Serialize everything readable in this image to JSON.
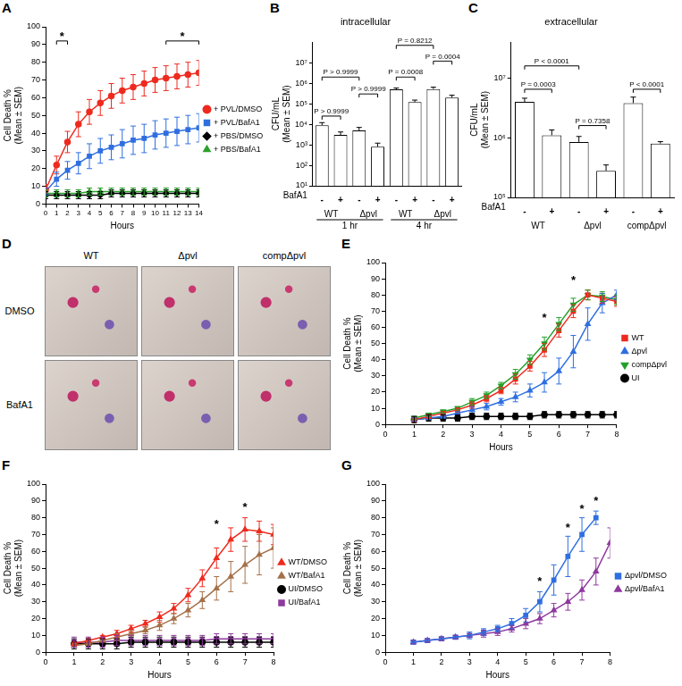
{
  "chart_data": [
    {
      "panel": "A",
      "type": "line",
      "xlabel": "Hours",
      "ylabel": [
        "Cell Death %",
        "(Mean ± SEM)"
      ],
      "x": [
        0,
        1,
        2,
        3,
        4,
        5,
        6,
        7,
        8,
        9,
        10,
        11,
        12,
        13,
        14
      ],
      "xlim": [
        0,
        14
      ],
      "xticks": [
        0,
        1,
        2,
        3,
        4,
        5,
        6,
        7,
        8,
        9,
        10,
        11,
        12,
        13,
        14
      ],
      "ylim": [
        0,
        100
      ],
      "yticks": [
        0,
        10,
        20,
        30,
        40,
        50,
        60,
        70,
        80,
        90,
        100
      ],
      "grid": false,
      "legend": "right",
      "series": [
        {
          "name": "+ PVL/DMSO",
          "color": "#ee2a1f",
          "marker": "circle",
          "values": [
            8,
            22,
            35,
            45,
            52,
            57,
            61,
            64,
            66,
            68,
            70,
            71,
            72,
            73,
            74
          ],
          "errors": [
            3,
            5,
            6,
            7,
            7,
            7,
            7,
            7,
            7,
            7,
            7,
            7,
            7,
            7,
            7
          ]
        },
        {
          "name": "+ PVL/BafA1",
          "color": "#2f6fe0",
          "marker": "square",
          "values": [
            7,
            14,
            19,
            23,
            27,
            30,
            32,
            34,
            36,
            37,
            39,
            40,
            41,
            42,
            43
          ],
          "errors": [
            2,
            4,
            5,
            6,
            7,
            7,
            7,
            8,
            8,
            8,
            8,
            8,
            8,
            8,
            8
          ]
        },
        {
          "name": "+ PBS/DMSO",
          "color": "#000000",
          "marker": "diamond",
          "values": [
            5,
            5,
            5,
            5,
            5,
            5,
            6,
            6,
            6,
            6,
            6,
            6,
            6,
            6,
            6
          ],
          "errors": [
            2,
            2,
            2,
            2,
            2,
            2,
            2,
            2,
            2,
            2,
            2,
            2,
            2,
            2,
            2
          ]
        },
        {
          "name": "+ PBS/BafA1",
          "color": "#2ca02c",
          "marker": "triangle",
          "values": [
            6,
            6,
            6,
            6,
            7,
            7,
            7,
            7,
            7,
            7,
            7,
            7,
            7,
            7,
            7
          ],
          "errors": [
            2,
            2,
            2,
            2,
            2,
            2,
            2,
            2,
            2,
            2,
            2,
            2,
            2,
            2,
            2
          ]
        }
      ],
      "annotations": [
        {
          "text": "*",
          "from": 1,
          "to": 2,
          "y": 92
        },
        {
          "text": "*",
          "from": 11,
          "to": 14,
          "y": 92
        }
      ]
    },
    {
      "panel": "B",
      "type": "bar",
      "title": "intracellular",
      "ylabel": [
        "CFU/mL",
        "(Mean ± SEM)"
      ],
      "log": "y",
      "categories": [
        "-",
        "+",
        "-",
        "+",
        "-",
        "+",
        "-",
        "+"
      ],
      "x_row_label": "BafA1",
      "x_groups": [
        [
          {
            "label": "WT",
            "span": [
              0,
              1
            ]
          },
          {
            "label": "Δpvl",
            "span": [
              2,
              3
            ]
          },
          {
            "label": "WT",
            "span": [
              4,
              5
            ]
          },
          {
            "label": "Δpvl",
            "span": [
              6,
              7
            ]
          }
        ],
        [
          {
            "label": "1 hr",
            "span": [
              0,
              3
            ]
          },
          {
            "label": "4 hr",
            "span": [
              4,
              7
            ]
          }
        ]
      ],
      "values": [
        9000,
        3000,
        5000,
        800,
        500000,
        120000,
        520000,
        200000
      ],
      "errors": [
        3000,
        1200,
        2000,
        400,
        80000,
        30000,
        120000,
        60000
      ],
      "color": "#ffffff",
      "grid": false,
      "ylim": [
        10,
        100000000
      ],
      "yticks": [
        {
          "value": 10,
          "label": "10¹"
        },
        {
          "value": 100,
          "label": "10²"
        },
        {
          "value": 1000,
          "label": "10³"
        },
        {
          "value": 10000,
          "label": "10⁴"
        },
        {
          "value": 100000,
          "label": "10⁵"
        },
        {
          "value": 1000000,
          "label": "10⁶"
        },
        {
          "value": 10000000,
          "label": "10⁷"
        }
      ],
      "annotations": [
        {
          "text": "P > 0.9999",
          "from": 0,
          "to": 1,
          "y": 25000
        },
        {
          "text": "P > 0.9999",
          "from": 2,
          "to": 3,
          "y": 300000
        },
        {
          "text": "P > 0.9999",
          "from": 0,
          "to": 2,
          "y": 2000000
        },
        {
          "text": "P = 0.0008",
          "from": 4,
          "to": 5,
          "y": 2000000
        },
        {
          "text": "P = 0.0004",
          "from": 6,
          "to": 7,
          "y": 12000000
        },
        {
          "text": "P = 0.8212",
          "from": 4,
          "to": 6,
          "y": 70000000
        }
      ]
    },
    {
      "panel": "C",
      "type": "bar",
      "title": "extracellular",
      "ylabel": [
        "CFU/mL",
        "(Mean ± SEM)"
      ],
      "log": "y",
      "categories": [
        "-",
        "+",
        "-",
        "+",
        "-",
        "+"
      ],
      "x_row_label": "BafA1",
      "x_groups": [
        [
          {
            "label": "WT",
            "span": [
              0,
              1
            ]
          },
          {
            "label": "Δpvl",
            "span": [
              2,
              3
            ]
          },
          {
            "label": "compΔpvl",
            "span": [
              4,
              5
            ]
          }
        ]
      ],
      "values": [
        4000000,
        1100000,
        850000,
        280000,
        3800000,
        800000
      ],
      "errors": [
        600000,
        250000,
        200000,
        70000,
        1000000,
        60000
      ],
      "color": "#ffffff",
      "grid": false,
      "ylim": [
        100000,
        40000000
      ],
      "yticks": [
        {
          "value": 100000,
          "label": "10⁵"
        },
        {
          "value": 1000000,
          "label": "10⁶"
        },
        {
          "value": 10000000,
          "label": "10⁷"
        }
      ],
      "annotations": [
        {
          "text": "P = 0.0003",
          "from": 0,
          "to": 1,
          "y": 6500000
        },
        {
          "text": "P < 0.0001",
          "from": 0,
          "to": 2,
          "y": 16000000
        },
        {
          "text": "P = 0.7358",
          "from": 2,
          "to": 3,
          "y": 1600000
        },
        {
          "text": "P < 0.0001",
          "from": 4,
          "to": 5,
          "y": 6500000
        }
      ]
    },
    {
      "panel": "D",
      "type": "image",
      "columns": [
        "WT",
        "Δpvl",
        "compΔpvl"
      ],
      "rows": [
        "DMSO",
        "BafA1"
      ]
    },
    {
      "panel": "E",
      "type": "line",
      "xlabel": "Hours",
      "ylabel": [
        "Cell Death %",
        "(Mean ± SEM)"
      ],
      "x": [
        1,
        1.5,
        2,
        2.5,
        3,
        3.5,
        4,
        4.5,
        5,
        5.5,
        6,
        6.5,
        7,
        7.5,
        8
      ],
      "xlim": [
        0,
        8
      ],
      "xticks": [
        0,
        1,
        2,
        3,
        4,
        5,
        6,
        7,
        8
      ],
      "ylim": [
        0,
        100
      ],
      "yticks": [
        0,
        10,
        20,
        30,
        40,
        50,
        60,
        70,
        80,
        90,
        100
      ],
      "grid": false,
      "legend": "right",
      "series": [
        {
          "name": "WT",
          "color": "#ee2a1f",
          "marker": "square",
          "values": [
            3,
            5,
            7,
            9,
            12,
            16,
            21,
            28,
            36,
            46,
            58,
            70,
            80,
            78,
            76
          ],
          "errors": [
            1,
            1,
            1,
            1,
            2,
            2,
            2,
            3,
            3,
            4,
            4,
            4,
            3,
            3,
            3
          ]
        },
        {
          "name": "Δpvl",
          "color": "#2f6fe0",
          "marker": "triangle",
          "values": [
            3,
            4,
            5,
            7,
            9,
            11,
            14,
            17,
            21,
            26,
            33,
            45,
            62,
            75,
            80
          ],
          "errors": [
            1,
            1,
            1,
            1,
            2,
            2,
            2,
            3,
            4,
            6,
            8,
            10,
            10,
            6,
            3
          ]
        },
        {
          "name": "compΔpvl",
          "color": "#22a02a",
          "marker": "triangle-down",
          "values": [
            4,
            6,
            8,
            10,
            14,
            18,
            24,
            31,
            40,
            50,
            62,
            74,
            80,
            79,
            77
          ],
          "errors": [
            1,
            1,
            1,
            1,
            2,
            2,
            2,
            3,
            3,
            4,
            4,
            4,
            3,
            3,
            3
          ]
        },
        {
          "name": "UI",
          "color": "#000000",
          "marker": "circle",
          "values": [
            3,
            4,
            4,
            4,
            5,
            5,
            5,
            5,
            5,
            6,
            6,
            6,
            6,
            6,
            6
          ],
          "errors": [
            2,
            2,
            2,
            2,
            2,
            2,
            2,
            2,
            2,
            2,
            2,
            2,
            2,
            2,
            2
          ]
        }
      ],
      "annotations": [
        {
          "text": "*",
          "x": 5.5,
          "y": 66
        },
        {
          "text": "*",
          "x": 6.5,
          "y": 89
        }
      ]
    },
    {
      "panel": "F",
      "type": "line",
      "xlabel": "Hours",
      "ylabel": [
        "Cell Death %",
        "(Mean ± SEM)"
      ],
      "x": [
        1,
        1.5,
        2,
        2.5,
        3,
        3.5,
        4,
        4.5,
        5,
        5.5,
        6,
        6.5,
        7,
        7.5,
        8
      ],
      "xlim": [
        0,
        8
      ],
      "xticks": [
        0,
        1,
        2,
        3,
        4,
        5,
        6,
        7,
        8
      ],
      "ylim": [
        0,
        100
      ],
      "yticks": [
        0,
        10,
        20,
        30,
        40,
        50,
        60,
        70,
        80,
        90,
        100
      ],
      "grid": false,
      "legend": "right",
      "series": [
        {
          "name": "WT/DMSO",
          "color": "#ee2a1f",
          "marker": "triangle",
          "values": [
            5,
            7,
            9,
            11,
            14,
            17,
            21,
            26,
            34,
            44,
            56,
            67,
            73,
            72,
            70
          ],
          "errors": [
            1,
            1,
            1,
            2,
            2,
            2,
            3,
            3,
            4,
            5,
            6,
            7,
            7,
            6,
            6
          ]
        },
        {
          "name": "WT/BafA1",
          "color": "#a5714a",
          "marker": "triangle",
          "values": [
            4,
            5,
            7,
            9,
            11,
            13,
            16,
            20,
            25,
            31,
            38,
            45,
            52,
            58,
            62
          ],
          "errors": [
            1,
            1,
            1,
            2,
            2,
            2,
            3,
            3,
            4,
            5,
            7,
            9,
            11,
            12,
            12
          ]
        },
        {
          "name": "UI/DMSO",
          "color": "#000000",
          "marker": "circle",
          "values": [
            5,
            5,
            5,
            5,
            6,
            6,
            6,
            6,
            6,
            6,
            6,
            6,
            6,
            6,
            6
          ],
          "errors": [
            3,
            3,
            3,
            3,
            3,
            3,
            3,
            3,
            3,
            3,
            3,
            3,
            3,
            3,
            3
          ]
        },
        {
          "name": "UI/BafA1",
          "color": "#8e3a9e",
          "marker": "square",
          "values": [
            6,
            6,
            6,
            7,
            7,
            7,
            7,
            7,
            7,
            7,
            8,
            8,
            8,
            8,
            8
          ],
          "errors": [
            3,
            3,
            3,
            3,
            3,
            3,
            3,
            3,
            3,
            3,
            3,
            3,
            3,
            3,
            3
          ]
        }
      ],
      "annotations": [
        {
          "text": "*",
          "x": 6,
          "y": 76
        },
        {
          "text": "*",
          "x": 7,
          "y": 86
        }
      ]
    },
    {
      "panel": "G",
      "type": "line",
      "xlabel": "Hours",
      "ylabel": [
        "Cell Death %",
        "(Mean ± SEM)"
      ],
      "x": [
        1,
        1.5,
        2,
        2.5,
        3,
        3.5,
        4,
        4.5,
        5,
        5.5,
        6,
        6.5,
        7,
        7.5,
        8
      ],
      "xlim": [
        0,
        8
      ],
      "xticks": [
        0,
        1,
        2,
        3,
        4,
        5,
        6,
        7,
        8
      ],
      "ylim": [
        0,
        100
      ],
      "yticks": [
        0,
        10,
        20,
        30,
        40,
        50,
        60,
        70,
        80,
        90,
        100
      ],
      "grid": false,
      "legend": "right",
      "series": [
        {
          "name": "Δpvl/DMSO",
          "color": "#2f6fe0",
          "marker": "square",
          "values": [
            6,
            7,
            8,
            9,
            10,
            12,
            14,
            17,
            22,
            30,
            43,
            57,
            70,
            80,
            null
          ],
          "errors": [
            1,
            1,
            1,
            1,
            2,
            2,
            2,
            3,
            4,
            6,
            9,
            12,
            10,
            4,
            null
          ]
        },
        {
          "name": "Δpvl/BafA1",
          "color": "#8e3a9e",
          "marker": "triangle",
          "values": [
            6,
            7,
            8,
            9,
            10,
            11,
            12,
            14,
            17,
            20,
            25,
            30,
            37,
            48,
            65
          ],
          "errors": [
            1,
            1,
            1,
            1,
            1,
            2,
            2,
            2,
            3,
            3,
            4,
            5,
            6,
            8,
            9
          ]
        }
      ],
      "annotations": [
        {
          "text": "*",
          "x": 5.5,
          "y": 42
        },
        {
          "text": "*",
          "x": 6.5,
          "y": 74
        },
        {
          "text": "*",
          "x": 7,
          "y": 85
        },
        {
          "text": "*",
          "x": 7.5,
          "y": 90
        }
      ]
    }
  ]
}
